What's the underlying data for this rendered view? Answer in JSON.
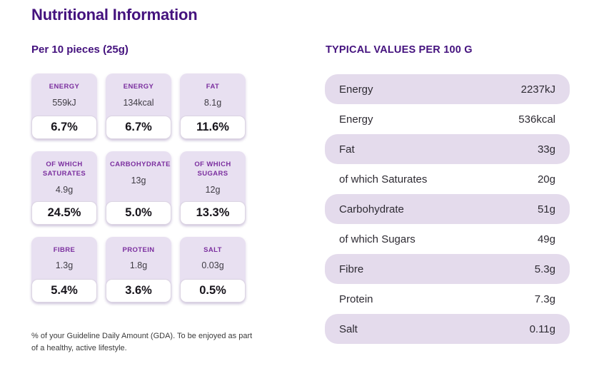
{
  "page": {
    "title": "Nutritional Information",
    "serving_heading": "Per 10 pieces (25g)",
    "footnote": "% of your Guideline Daily Amount (GDA). To be enjoyed as part of a healthy, active lifestyle."
  },
  "gda_cards": [
    {
      "label": "ENERGY",
      "value": "559kJ",
      "percent": "6.7%"
    },
    {
      "label": "ENERGY",
      "value": "134kcal",
      "percent": "6.7%"
    },
    {
      "label": "FAT",
      "value": "8.1g",
      "percent": "11.6%"
    },
    {
      "label": "OF WHICH SATURATES",
      "value": "4.9g",
      "percent": "24.5%"
    },
    {
      "label": "CARBOHYDRATE",
      "value": "13g",
      "percent": "5.0%"
    },
    {
      "label": "OF WHICH SUGARS",
      "value": "12g",
      "percent": "13.3%"
    },
    {
      "label": "FIBRE",
      "value": "1.3g",
      "percent": "5.4%"
    },
    {
      "label": "PROTEIN",
      "value": "1.8g",
      "percent": "3.6%"
    },
    {
      "label": "SALT",
      "value": "0.03g",
      "percent": "0.5%"
    }
  ],
  "typical_values": {
    "heading": "TYPICAL VALUES PER 100 G",
    "rows": [
      {
        "label": "Energy",
        "value": "2237kJ"
      },
      {
        "label": "Energy",
        "value": "536kcal"
      },
      {
        "label": "Fat",
        "value": "33g"
      },
      {
        "label": "of which Saturates",
        "value": "20g"
      },
      {
        "label": "Carbohydrate",
        "value": "51g"
      },
      {
        "label": "of which Sugars",
        "value": "49g"
      },
      {
        "label": "Fibre",
        "value": "5.3g"
      },
      {
        "label": "Protein",
        "value": "7.3g"
      },
      {
        "label": "Salt",
        "value": "0.11g"
      }
    ]
  },
  "colors": {
    "heading_purple": "#44127E",
    "label_purple": "#7B2F9F",
    "card_bg": "#E8E0F1",
    "row_bg": "#E4DBEC",
    "text_dark": "#3F3C44",
    "percent_black": "#17141B"
  }
}
